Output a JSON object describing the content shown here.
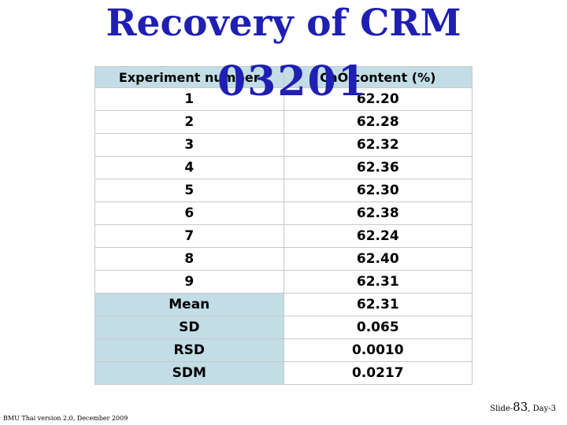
{
  "title": "Recovery of CRM",
  "subtitle": "03201",
  "table": {
    "headers": [
      "Experiment number",
      "CaO content (%)"
    ],
    "rows": [
      [
        "1",
        "62.20"
      ],
      [
        "2",
        "62.28"
      ],
      [
        "3",
        "62.32"
      ],
      [
        "4",
        "62.36"
      ],
      [
        "5",
        "62.30"
      ],
      [
        "6",
        "62.38"
      ],
      [
        "7",
        "62.24"
      ],
      [
        "8",
        "62.40"
      ],
      [
        "9",
        "62.31"
      ]
    ],
    "stats": [
      [
        "Mean",
        "62.31"
      ],
      [
        "SD",
        "0.065"
      ],
      [
        "RSD",
        "0.0010"
      ],
      [
        "SDM",
        "0.0217"
      ]
    ],
    "colors": {
      "header_bg": "#c2dde6",
      "title": "#1f1fb3"
    }
  },
  "footer": {
    "left": "BMU Thai version 2.0, December 2009",
    "slide_prefix": "Slide-",
    "slide_number": "83",
    "day": ", Day-3"
  }
}
